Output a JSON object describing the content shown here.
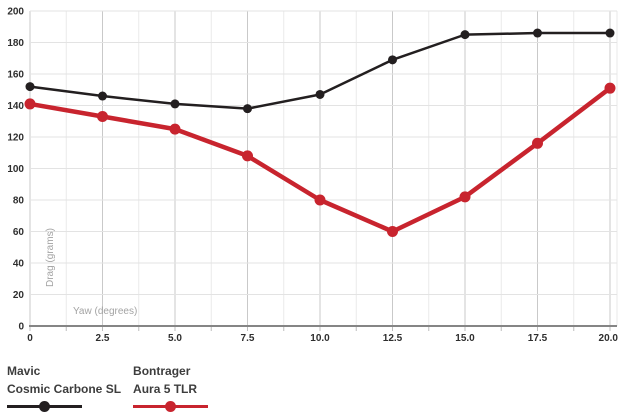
{
  "chart_data": {
    "type": "line",
    "title": "",
    "xlabel": "Yaw (degrees)",
    "ylabel": "Drag (grams)",
    "x": [
      0,
      2.5,
      5,
      7.5,
      10,
      12.5,
      15,
      17.5,
      20
    ],
    "x_tick_labels": [
      "0",
      "2.5",
      "5.0",
      "7.5",
      "10.0",
      "12.5",
      "15.0",
      "17.5",
      "20.0"
    ],
    "y_tick_labels": [
      "0",
      "20",
      "40",
      "60",
      "80",
      "100",
      "120",
      "140",
      "160",
      "180",
      "200"
    ],
    "xlim": [
      0,
      20
    ],
    "ylim": [
      0,
      200
    ],
    "x_minor_step": 1.25,
    "y_major_step": 20,
    "grid": "on",
    "legend_position": "bottom-left",
    "series": [
      {
        "name": "Mavic Cosmic Carbone SL",
        "legend_line1": "Mavic",
        "legend_line2": "Cosmic Carbone SL",
        "color": "#231f20",
        "values": [
          152,
          146,
          141,
          138,
          147,
          169,
          185,
          186,
          186
        ]
      },
      {
        "name": "Bontrager Aura 5 TLR",
        "legend_line1": "Bontrager",
        "legend_line2": "Aura 5 TLR",
        "color": "#c8242e",
        "values": [
          141,
          133,
          125,
          108,
          80,
          60,
          82,
          116,
          151
        ]
      }
    ]
  },
  "style_colors": {
    "background": "#ffffff",
    "grid_major_vertical": "#c9c9c9",
    "grid_minor_vertical": "#eaeaea",
    "grid_horizontal": "#e3e3e3",
    "axis_line": "#858585",
    "tick_mark": "#bdbdbd",
    "tick_label": "#2e2e2e",
    "axis_title": "#a3a3a3",
    "legend_text": "#3d3d3d"
  }
}
